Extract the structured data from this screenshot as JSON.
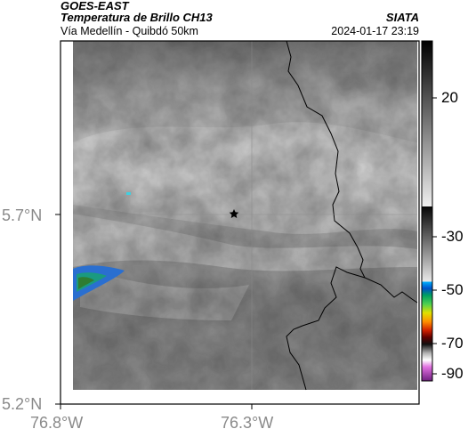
{
  "header": {
    "satellite": "GOES-EAST",
    "product": "Temperatura de Brillo CH13",
    "agency": "SIATA",
    "region": "Vía Medellín - Quibdó 50km",
    "datetime": "2024-01-17 23:19"
  },
  "axes": {
    "y_ticks": [
      "5.7°N",
      "5.2°N"
    ],
    "x_ticks": [
      "76.8°W",
      "76.3°W"
    ]
  },
  "colorbar": {
    "tick_labels": [
      "20",
      "-30",
      "-50",
      "-70",
      "-90"
    ]
  },
  "colors": {
    "frame": "#000000",
    "marker": "#000000"
  },
  "icons": {
    "marker": "star-icon"
  }
}
